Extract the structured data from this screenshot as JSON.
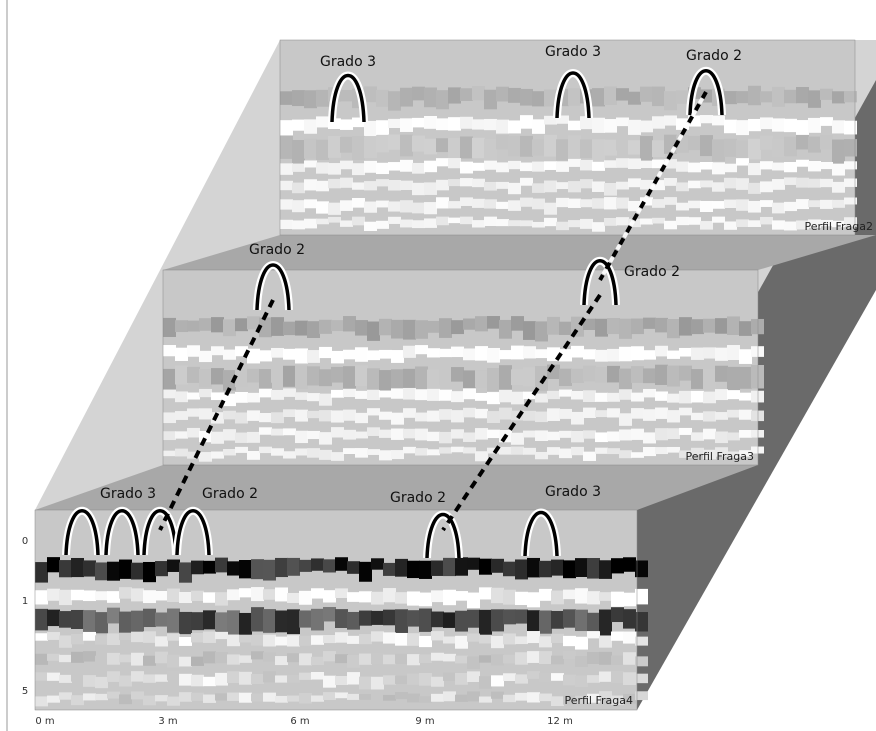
{
  "panels": [
    {
      "label": "Perfil Fraga2",
      "markers": [
        "Grado 3",
        "Grado 3",
        "Grado 2"
      ]
    },
    {
      "label": "Perfil Fraga3",
      "markers": [
        "Grado 2",
        "Grado 2"
      ]
    },
    {
      "label": "Perfil Fraga4",
      "markers": [
        "Grado 3",
        "Grado 2",
        "Grado 2",
        "Grado 3"
      ]
    }
  ],
  "x_axis": [
    "0 m",
    "3 m",
    "6 m",
    "9 m",
    "12 m"
  ],
  "y_axis": [
    "0",
    "1",
    "5"
  ]
}
